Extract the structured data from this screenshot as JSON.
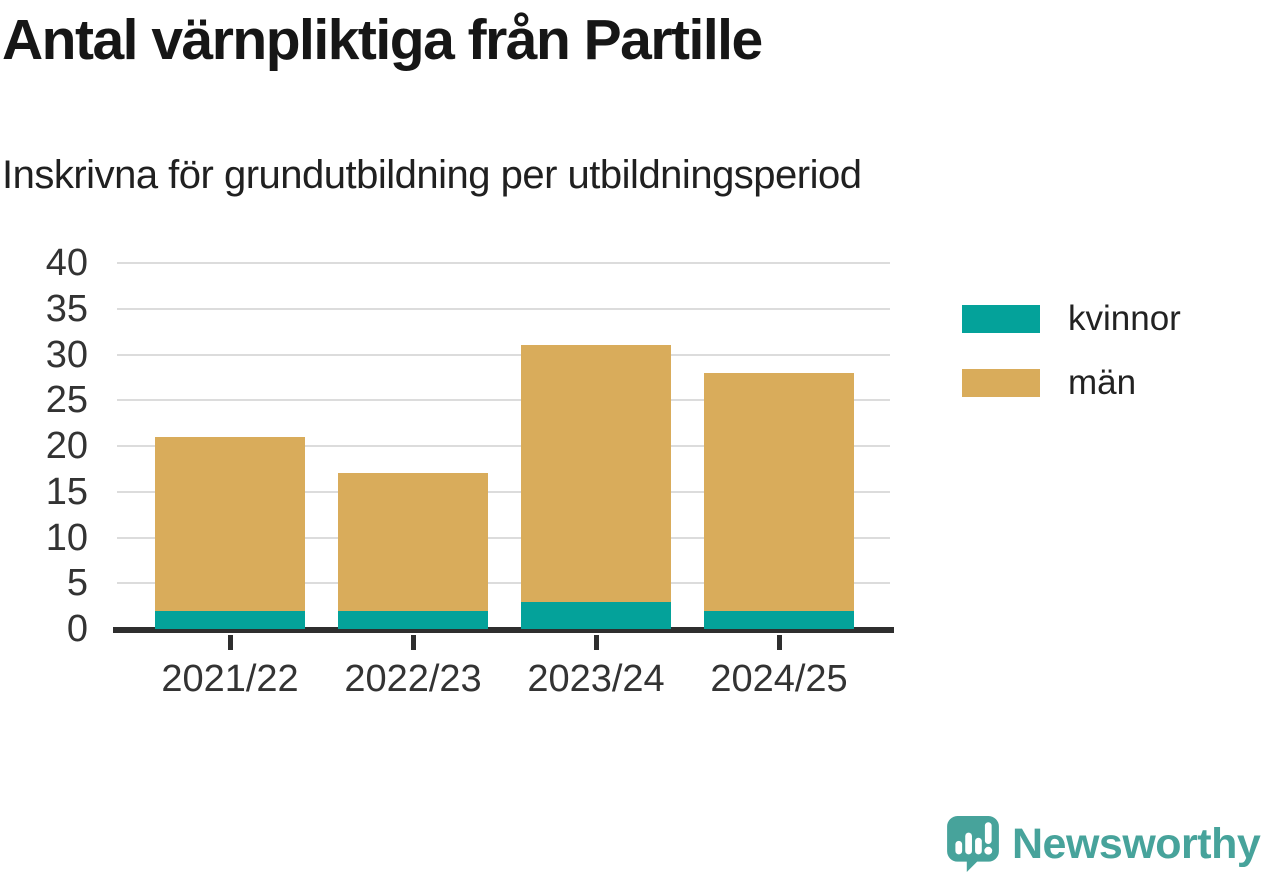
{
  "title": "Antal värnpliktiga från Partille",
  "subtitle": "Inskrivna för grundutbildning per utbildningsperiod",
  "colors": {
    "kvinnor": "#04a29a",
    "man": "#d9ac5b",
    "grid": "#dcdcdc",
    "axis": "#2e2e2e",
    "label_text": "#333333",
    "title_text": "#161616",
    "brand_teal": "#47a39b"
  },
  "chart_data": {
    "type": "bar",
    "stacked": true,
    "title": "Antal värnpliktiga från Partille",
    "subtitle": "Inskrivna för grundutbildning per utbildningsperiod",
    "categories": [
      "2021/22",
      "2022/23",
      "2023/24",
      "2024/25"
    ],
    "series": [
      {
        "name": "kvinnor",
        "values": [
          2,
          2,
          3,
          2
        ],
        "color": "#04a29a"
      },
      {
        "name": "män",
        "values": [
          19,
          15,
          28,
          26
        ],
        "color": "#d9ac5b"
      }
    ],
    "totals": [
      21,
      17,
      31,
      28
    ],
    "xlabel": "",
    "ylabel": "",
    "ylim": [
      0,
      40
    ],
    "y_ticks": [
      0,
      5,
      10,
      15,
      20,
      25,
      30,
      35,
      40
    ],
    "grid": "horizontal",
    "legend_position": "right"
  },
  "legend": {
    "items": [
      {
        "label": "kvinnor",
        "color": "#04a29a"
      },
      {
        "label": "män",
        "color": "#d9ac5b"
      }
    ]
  },
  "branding": {
    "logo_text": "Newsworthy",
    "logo_icon": "newsworthy-speech-bubble-bar-chart-icon"
  }
}
